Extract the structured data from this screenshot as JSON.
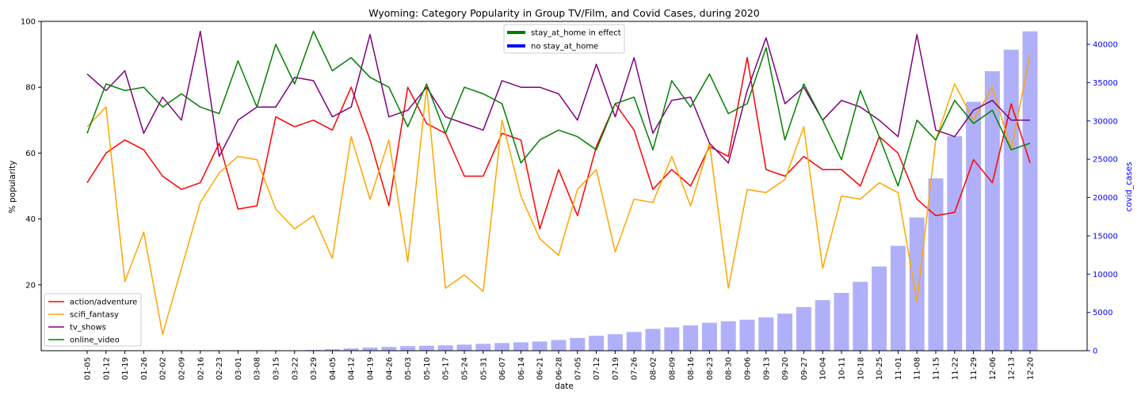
{
  "chart_data": {
    "type": "bar+line",
    "title": "Wyoming: Category Popularity in Group TV/Film, and Covid Cases, during 2020",
    "xlabel": "date",
    "ylabel_left": "% popularity",
    "ylabel_right": "covid_cases",
    "ylim_left": [
      0,
      100
    ],
    "ylim_right": [
      0,
      43000
    ],
    "yticks_left": [
      20,
      40,
      60,
      80,
      100
    ],
    "yticks_right": [
      0,
      5000,
      10000,
      15000,
      20000,
      25000,
      30000,
      35000,
      40000
    ],
    "grid": false,
    "categories": [
      "01-05",
      "01-12",
      "01-19",
      "01-26",
      "02-02",
      "02-09",
      "02-16",
      "02-23",
      "03-01",
      "03-08",
      "03-15",
      "03-22",
      "03-29",
      "04-05",
      "04-12",
      "04-19",
      "04-26",
      "05-03",
      "05-10",
      "05-17",
      "05-24",
      "05-31",
      "06-07",
      "06-14",
      "06-21",
      "06-28",
      "07-05",
      "07-12",
      "07-19",
      "07-26",
      "08-02",
      "08-09",
      "08-16",
      "08-23",
      "08-30",
      "09-06",
      "09-13",
      "09-20",
      "09-27",
      "10-04",
      "10-11",
      "10-18",
      "10-25",
      "11-01",
      "11-08",
      "11-15",
      "11-22",
      "11-29",
      "12-06",
      "12-13",
      "12-20"
    ],
    "series": [
      {
        "name": "action/adventure",
        "color": "#ff0000",
        "values": [
          51,
          60,
          64,
          61,
          53,
          49,
          51,
          63,
          43,
          44,
          71,
          68,
          70,
          67,
          80,
          64,
          44,
          80,
          69,
          66,
          53,
          53,
          66,
          64,
          37,
          55,
          41,
          62,
          75,
          67,
          49,
          55,
          50,
          62,
          59,
          89,
          55,
          53,
          59,
          55,
          55,
          50,
          65,
          60,
          46,
          41,
          42,
          58,
          51,
          75,
          57
        ]
      },
      {
        "name": "scifi_fantasy",
        "color": "#ffa500",
        "values": [
          68,
          74,
          21,
          36,
          5,
          25,
          45,
          54,
          59,
          58,
          43,
          37,
          41,
          28,
          65,
          46,
          64,
          27,
          80,
          19,
          23,
          18,
          70,
          47,
          34,
          29,
          49,
          55,
          30,
          46,
          45,
          59,
          44,
          63,
          19,
          49,
          48,
          52,
          68,
          25,
          47,
          46,
          51,
          48,
          15,
          64,
          81,
          70,
          80,
          61,
          90
        ]
      },
      {
        "name": "tv_shows",
        "color": "#800080",
        "values": [
          84,
          79,
          85,
          66,
          77,
          70,
          97,
          59,
          70,
          74,
          74,
          83,
          82,
          71,
          74,
          96,
          71,
          73,
          80,
          71,
          69,
          67,
          82,
          80,
          80,
          78,
          70,
          87,
          71,
          89,
          66,
          76,
          77,
          63,
          57,
          79,
          95,
          75,
          80,
          70,
          76,
          74,
          70,
          65,
          96,
          67,
          65,
          73,
          76,
          70,
          70
        ]
      },
      {
        "name": "online_video",
        "color": "#008000",
        "values": [
          66,
          81,
          79,
          80,
          74,
          78,
          74,
          72,
          88,
          74,
          93,
          81,
          97,
          85,
          89,
          83,
          80,
          68,
          81,
          66,
          80,
          78,
          75,
          57,
          64,
          67,
          65,
          61,
          75,
          77,
          61,
          82,
          74,
          84,
          72,
          75,
          92,
          64,
          81,
          70,
          58,
          79,
          65,
          50,
          70,
          64,
          76,
          69,
          73,
          61,
          63
        ]
      }
    ],
    "bars": {
      "name": "covid_cases",
      "color": "#b0b0fa",
      "values": [
        0,
        0,
        0,
        0,
        0,
        0,
        0,
        0,
        0,
        0,
        0,
        50,
        100,
        200,
        300,
        400,
        500,
        600,
        650,
        700,
        800,
        900,
        1000,
        1100,
        1200,
        1400,
        1650,
        1950,
        2150,
        2450,
        2850,
        3050,
        3300,
        3650,
        3850,
        4050,
        4350,
        4850,
        5700,
        6600,
        7550,
        9000,
        11000,
        13700,
        17400,
        22500,
        28000,
        32500,
        36500,
        39300,
        41700
      ]
    },
    "legend_lines": {
      "placement": "lower-left",
      "entries": [
        "action/adventure",
        "scifi_fantasy",
        "tv_shows",
        "online_video"
      ]
    },
    "legend_policy": {
      "placement": "upper-center",
      "entries": [
        {
          "label": "stay_at_home in effect",
          "color": "#008000"
        },
        {
          "label": "no stay_at_home",
          "color": "#0000ff"
        }
      ]
    }
  }
}
